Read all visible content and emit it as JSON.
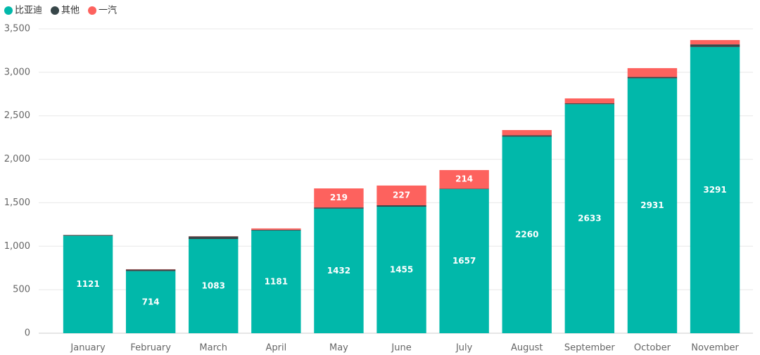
{
  "chart_data": {
    "type": "stacked_bar",
    "categories": [
      "January",
      "February",
      "March",
      "April",
      "May",
      "June",
      "July",
      "August",
      "September",
      "October",
      "November"
    ],
    "series": [
      {
        "name": "比亚迪",
        "color": "#01B8AA",
        "values": [
          1121,
          714,
          1083,
          1181,
          1432,
          1455,
          1657,
          2260,
          2633,
          2931,
          3291
        ]
      },
      {
        "name": "其他",
        "color": "#374649",
        "values": [
          8,
          18,
          30,
          8,
          14,
          16,
          5,
          16,
          10,
          15,
          30
        ]
      },
      {
        "name": "一汽",
        "color": "#FD625E",
        "values": [
          2,
          4,
          3,
          16,
          219,
          227,
          214,
          60,
          57,
          102,
          50
        ]
      }
    ],
    "ylim": [
      0,
      3500
    ],
    "yticks": [
      0,
      500,
      {
        "value": 1000,
        "label": "1,000"
      },
      {
        "value": 1500,
        "label": "1,500"
      },
      {
        "value": 2000,
        "label": "2,000"
      },
      {
        "value": 2500,
        "label": "2,500"
      },
      {
        "value": 3000,
        "label": "3,000"
      },
      {
        "value": 3500,
        "label": "3,500"
      }
    ],
    "grid": true,
    "legend": "top-left"
  }
}
